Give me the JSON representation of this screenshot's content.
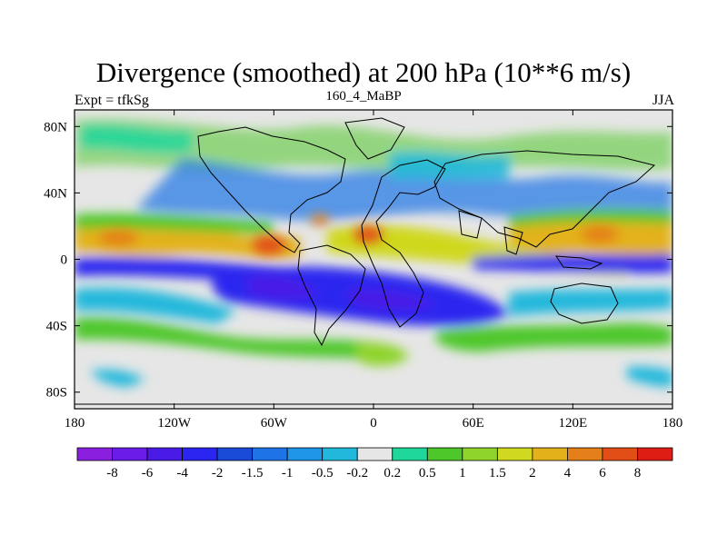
{
  "chart_data": {
    "type": "heatmap",
    "title": "Divergence (smoothed) at 200 hPa (10**6 m/s)",
    "left_string": "Expt = tfkSg",
    "center_string": "160_4_MaBP",
    "right_string": "JJA",
    "xlabel": "",
    "ylabel": "",
    "xlim": [
      -180,
      180
    ],
    "ylim": [
      -90,
      90
    ],
    "x_ticks": [
      {
        "value": -180,
        "label": "180"
      },
      {
        "value": -120,
        "label": "120W"
      },
      {
        "value": -60,
        "label": "60W"
      },
      {
        "value": 0,
        "label": "0"
      },
      {
        "value": 60,
        "label": "60E"
      },
      {
        "value": 120,
        "label": "120E"
      },
      {
        "value": 180,
        "label": "180"
      }
    ],
    "y_ticks": [
      {
        "value": 80,
        "label": "80N"
      },
      {
        "value": 40,
        "label": "40N"
      },
      {
        "value": 0,
        "label": "0"
      },
      {
        "value": -40,
        "label": "40S"
      },
      {
        "value": -80,
        "label": "80S"
      }
    ],
    "colorbar": {
      "levels": [
        "-8",
        "-6",
        "-4",
        "-2",
        "-1.5",
        "-1",
        "-0.5",
        "-0.2",
        "0.2",
        "0.5",
        "1",
        "1.5",
        "2",
        "4",
        "6",
        "8"
      ],
      "colors": [
        "#8a1fe0",
        "#6a1de8",
        "#4a1ae6",
        "#2a25f0",
        "#1a4ad8",
        "#1e74e6",
        "#1f95e8",
        "#21b8dc",
        "#e6e6e6",
        "#1fd79a",
        "#4ec72a",
        "#8ed42a",
        "#d0d81f",
        "#e3b21b",
        "#e47f19",
        "#e34e16",
        "#de1d14"
      ]
    },
    "regions": [
      {
        "lon": -150,
        "lat": 16,
        "rlon": 35,
        "rlat": 9,
        "level": 12,
        "label": "NE Pacific positive band"
      },
      {
        "lon": -70,
        "lat": 8,
        "rlon": 12,
        "rlat": 6,
        "level": 13,
        "label": "Central America maximum"
      },
      {
        "lon": -45,
        "lat": 20,
        "rlon": 6,
        "rlat": 4,
        "level": 13,
        "label": "Caribbean maximum"
      },
      {
        "lon": -2,
        "lat": 15,
        "rlon": 10,
        "rlat": 7,
        "level": 13,
        "label": "West Africa maximum"
      },
      {
        "lon": 40,
        "lat": 6,
        "rlon": 50,
        "rlat": 7,
        "level": 11,
        "label": "Africa / Indian Ocean positive band"
      },
      {
        "lon": 140,
        "lat": 15,
        "rlon": 40,
        "rlat": 10,
        "level": 12,
        "label": "Western Pacific positive band"
      },
      {
        "lon": -75,
        "lat": -16,
        "rlon": 20,
        "rlat": 9,
        "level": 3,
        "label": "South America convergence"
      },
      {
        "lon": -10,
        "lat": -25,
        "rlon": 30,
        "rlat": 12,
        "level": 3,
        "label": "South Atlantic convergence"
      },
      {
        "lon": 120,
        "lat": 2,
        "rlon": 45,
        "rlat": 5,
        "level": 4,
        "label": "Equatorial western Pacific convergence"
      },
      {
        "lon": -20,
        "lat": -60,
        "rlon": 12,
        "rlat": 6,
        "level": 11,
        "label": "Southern Ocean positive"
      }
    ],
    "continent_outline": "simplified coastline"
  }
}
